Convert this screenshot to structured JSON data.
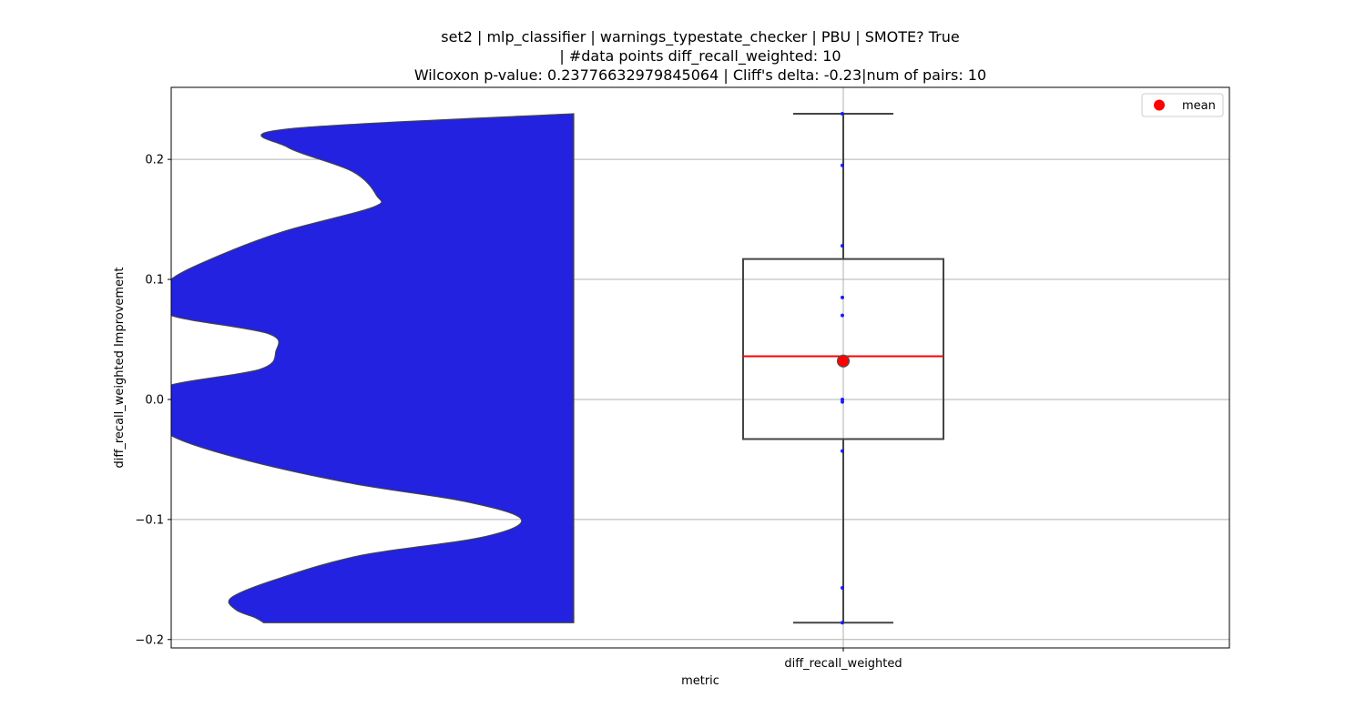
{
  "title": {
    "line1": "set2 | mlp_classifier | warnings_typestate_checker | PBU | SMOTE? True",
    "line2": "| #data points diff_recall_weighted: 10",
    "line3": "Wilcoxon p-value: 0.23776632979845064 | Cliff's delta: -0.23|num of pairs: 10"
  },
  "legend": {
    "label": "mean",
    "placement": "top-right"
  },
  "colors": {
    "violin_fill": "#2222e0",
    "violin_edge": "#444444",
    "box_edge": "#444444",
    "median": "#ff0000",
    "mean_marker": "#ff0000",
    "points": "#1a1aff",
    "grid": "#b0b0b0"
  },
  "chart_data": {
    "type": "box",
    "xlabel": "metric",
    "ylabel": "diff_recall_weighted Improvement",
    "categories": [
      "diff_recall_weighted"
    ],
    "ylim": [
      -0.207,
      0.26
    ],
    "yticks": [
      -0.2,
      -0.1,
      0.0,
      0.1,
      0.2
    ],
    "ytick_labels": [
      "−0.2",
      "−0.1",
      "0.0",
      "0.1",
      "0.2"
    ],
    "grid": true,
    "box": {
      "whisker_low": -0.186,
      "q1": -0.033,
      "median": 0.036,
      "q3": 0.117,
      "whisker_high": 0.238,
      "mean": 0.032
    },
    "points": [
      0.238,
      0.195,
      0.128,
      0.085,
      0.07,
      0.0,
      -0.002,
      -0.043,
      -0.157,
      -0.186
    ],
    "violin": {
      "note_units": "y in data units, width as fraction of max half-width",
      "profile": [
        [
          0.238,
          0.0
        ],
        [
          0.225,
          0.72
        ],
        [
          0.21,
          0.71
        ],
        [
          0.19,
          0.55
        ],
        [
          0.17,
          0.49
        ],
        [
          0.16,
          0.5
        ],
        [
          0.14,
          0.72
        ],
        [
          0.12,
          0.88
        ],
        [
          0.1,
          1.0
        ],
        [
          0.085,
          1.0
        ],
        [
          0.07,
          1.0
        ],
        [
          0.055,
          0.76
        ],
        [
          0.04,
          0.74
        ],
        [
          0.025,
          0.78
        ],
        [
          0.012,
          1.0
        ],
        [
          0.0,
          1.0
        ],
        [
          -0.015,
          1.0
        ],
        [
          -0.03,
          1.0
        ],
        [
          -0.05,
          0.82
        ],
        [
          -0.07,
          0.55
        ],
        [
          -0.085,
          0.27
        ],
        [
          -0.1,
          0.13
        ],
        [
          -0.115,
          0.23
        ],
        [
          -0.13,
          0.53
        ],
        [
          -0.15,
          0.74
        ],
        [
          -0.165,
          0.85
        ],
        [
          -0.175,
          0.84
        ],
        [
          -0.182,
          0.79
        ],
        [
          -0.186,
          0.77
        ]
      ]
    }
  }
}
